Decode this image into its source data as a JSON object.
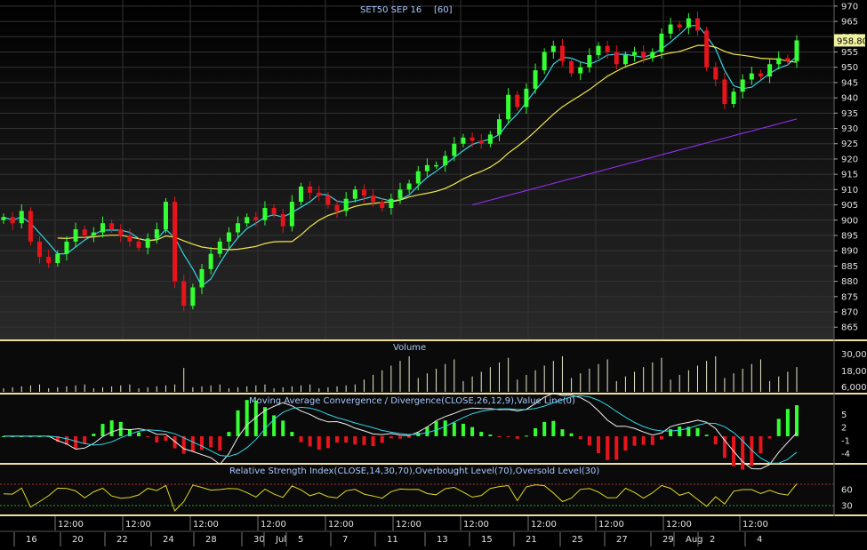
{
  "title": "SET50 SEP 16",
  "interval": "[60]",
  "last_price": "958.80",
  "colors": {
    "up": "#33ff33",
    "down": "#e8141b",
    "ma_fast": "#33d6e6",
    "ma_mid": "#f2e84a",
    "ma_slow": "#8a2be2",
    "text": "#e0e0e0",
    "title": "#a8c8ff",
    "panel_border": "#f0e0a0",
    "volume": "#e8e8c8",
    "rsi": "#e0d820",
    "macd_line": "#f0f0f0",
    "signal_line": "#33d6e6",
    "last_bg": "#f0f0a0"
  },
  "price_axis": {
    "min": 861,
    "max": 972,
    "labels": [
      "970",
      "965",
      "960",
      "955",
      "950",
      "945",
      "940",
      "935",
      "930",
      "925",
      "920",
      "915",
      "910",
      "905",
      "900",
      "895",
      "890",
      "885",
      "880",
      "875",
      "870",
      "865"
    ]
  },
  "volume_panel": {
    "title": "Volume",
    "labels": [
      "30,00",
      "18,00",
      "6,000"
    ],
    "max": 32000
  },
  "macd_panel": {
    "title": "Moving Average Convergence / Divergence(CLOSE,26,12,9),Value Line(0)",
    "labels": [
      "5",
      "2",
      "-1",
      "-4"
    ],
    "min": -6,
    "max": 7
  },
  "rsi_panel": {
    "title": "Relative Strength Index(CLOSE,14,30,70),Overbought Level(70),Oversold Level(30)",
    "labels": [
      "60",
      "30"
    ],
    "min": 15,
    "max": 85,
    "overbought": 70,
    "oversold": 30
  },
  "time_axis": {
    "hours": [
      "12:00",
      "12:00",
      "12:00",
      "12:00",
      "12:00",
      "12:00",
      "12:00",
      "12:00",
      "12:00",
      "12:00",
      "12:00"
    ],
    "dates": [
      "16",
      "20",
      "22",
      "24",
      "28",
      "30",
      "Jul",
      "5",
      "7",
      "11",
      "13",
      "15",
      "21",
      "25",
      "27",
      "29",
      "Aug",
      "2",
      "4"
    ]
  },
  "chart_data": {
    "type": "candlestick",
    "title": "SET50 SEP 16 [60]",
    "ylim": [
      861,
      972
    ],
    "series": [
      {
        "name": "close",
        "values": [
          901,
          899,
          903,
          893,
          888,
          886,
          889,
          893,
          897,
          895,
          896,
          899,
          897,
          895,
          893,
          891,
          894,
          897,
          906,
          880,
          872,
          878,
          884,
          889,
          893,
          896,
          899,
          901,
          900,
          904,
          902,
          898,
          906,
          911,
          909,
          908,
          905,
          903,
          907,
          910,
          908,
          906,
          904,
          907,
          910,
          912,
          916,
          918,
          918,
          921,
          925,
          927,
          926,
          925,
          928,
          933,
          941,
          937,
          943,
          949,
          955,
          957,
          952,
          948,
          950,
          954,
          957,
          955,
          951,
          954,
          955,
          953,
          955,
          961,
          964,
          963,
          966,
          962,
          950,
          946,
          938,
          942,
          946,
          948,
          947,
          951,
          953,
          952,
          958.8
        ]
      }
    ]
  }
}
